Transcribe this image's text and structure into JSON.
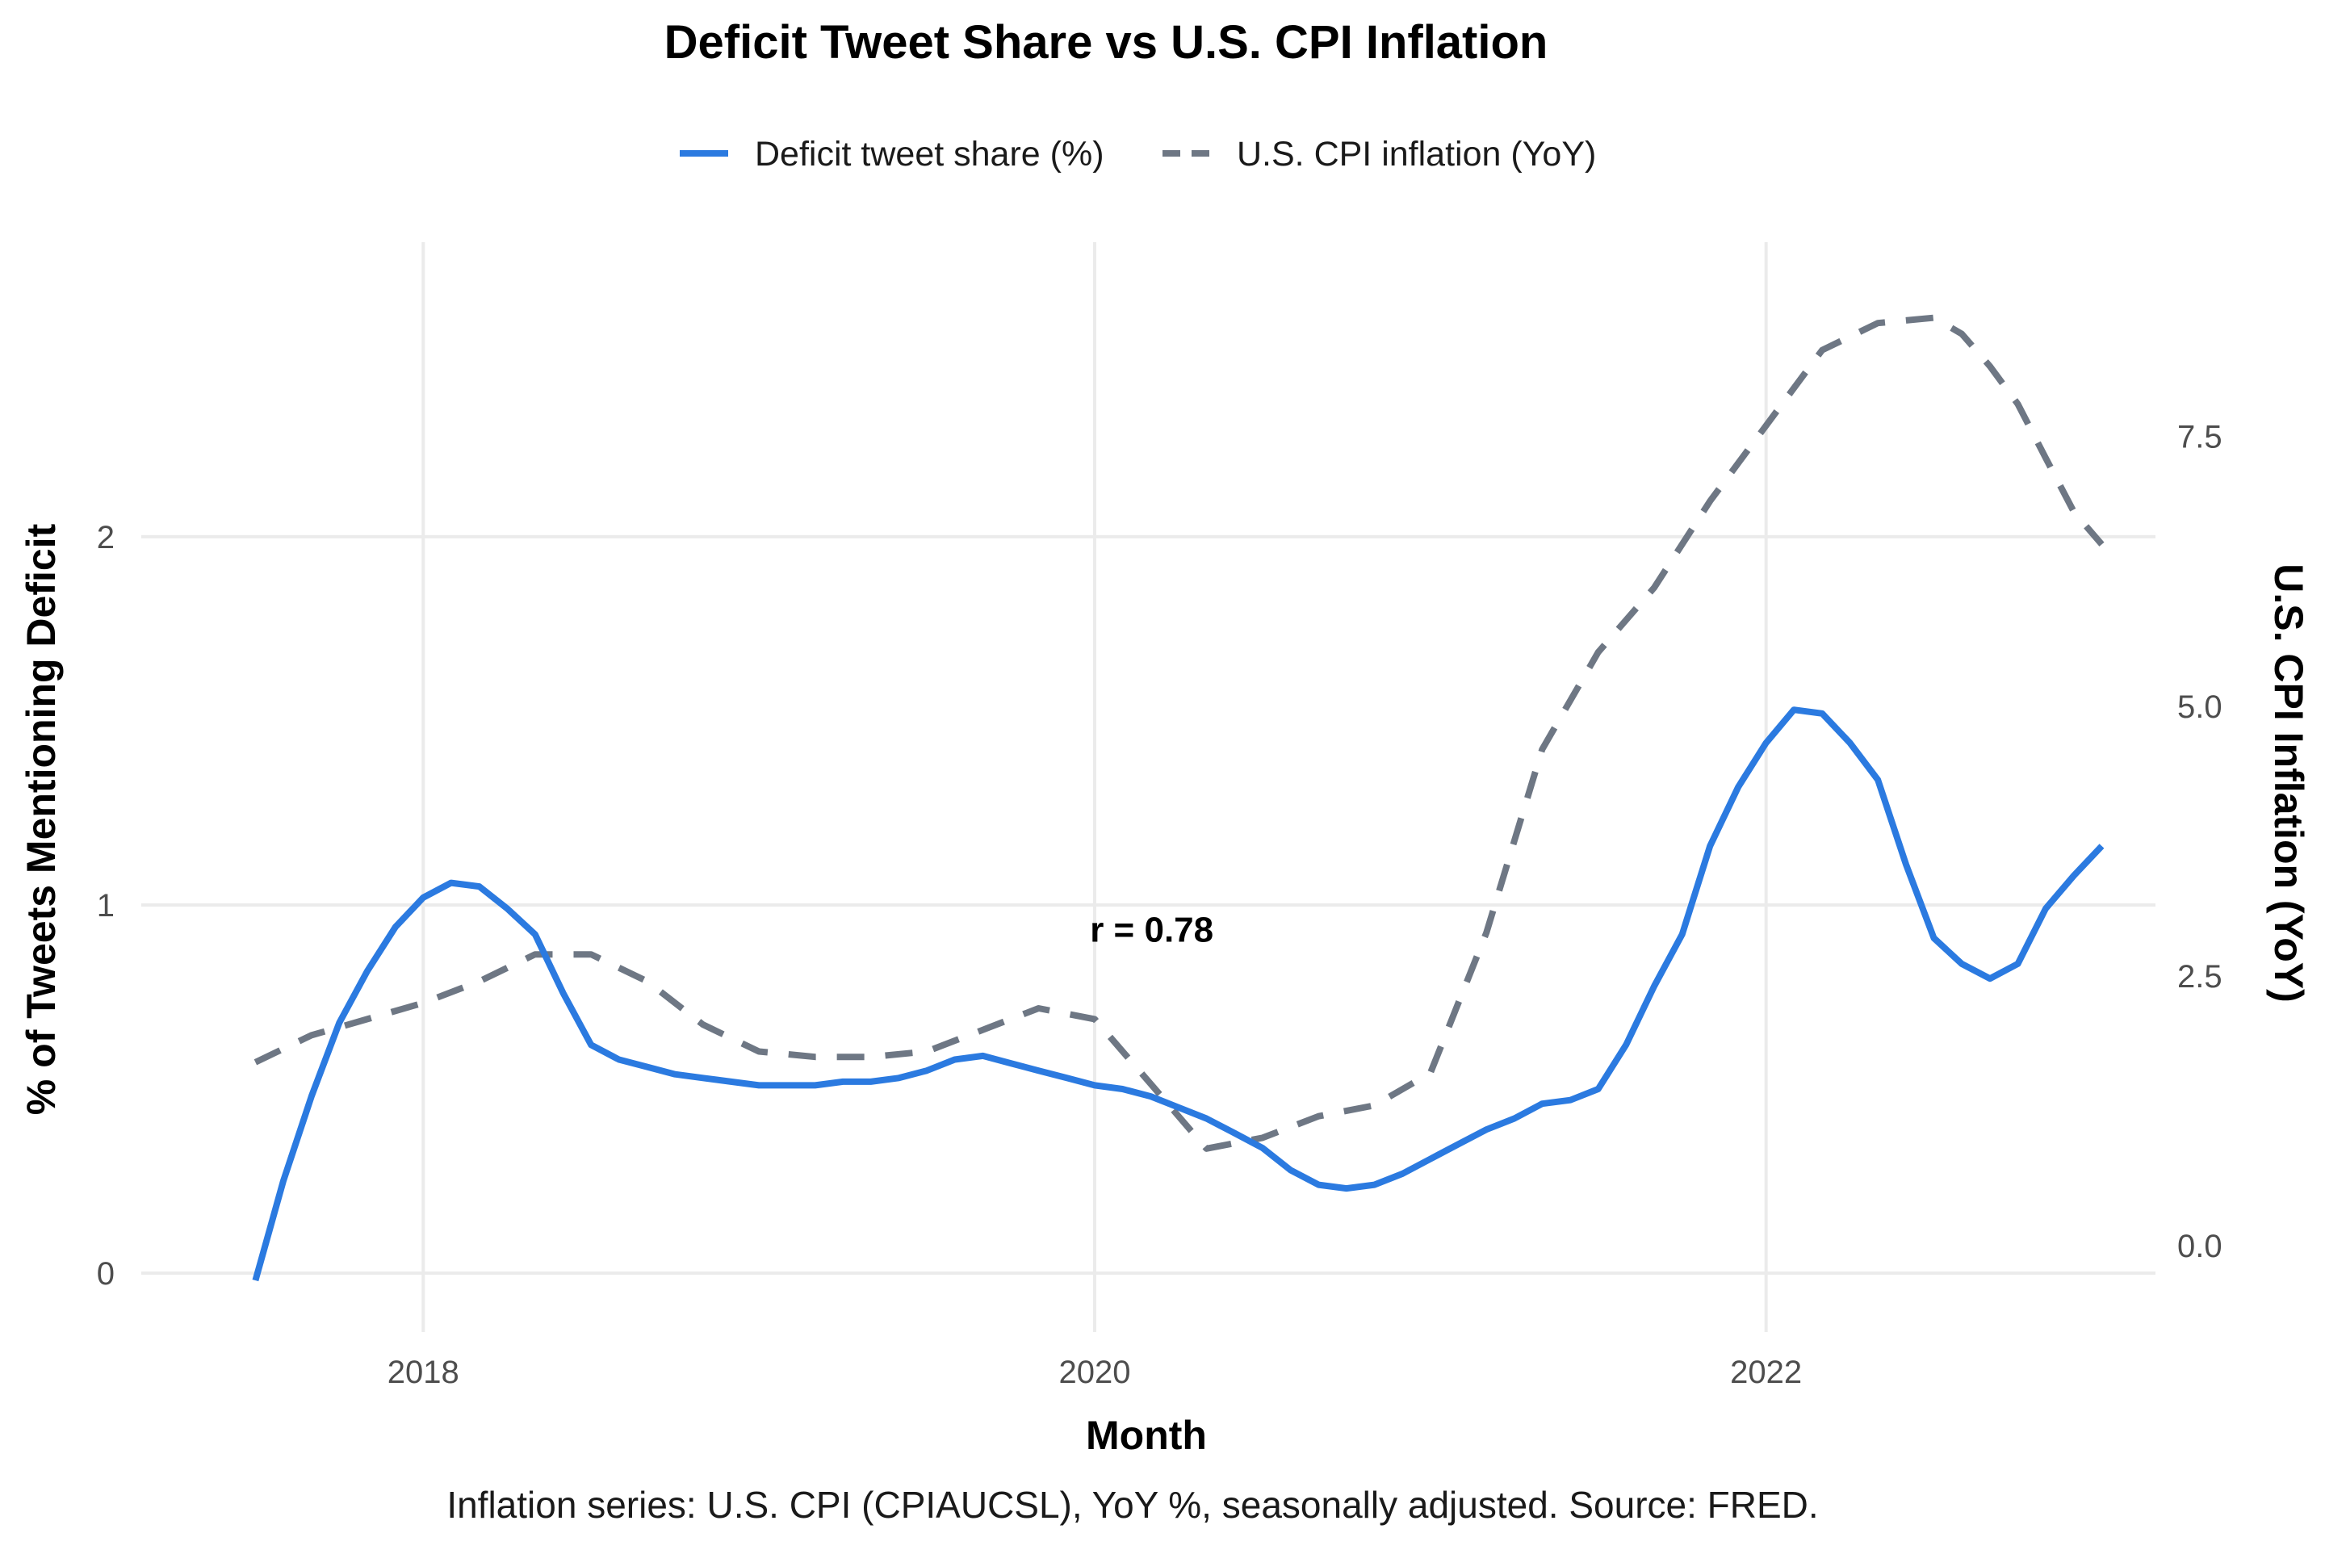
{
  "chart_data": {
    "type": "line",
    "title": "Deficit Tweet Share vs U.S. CPI Inflation",
    "xlabel": "Month",
    "ylabel": "% of Tweets Mentioning Deficit",
    "y2label": "U.S. CPI Inflation (YoY)",
    "caption": "Inflation series: U.S. CPI (CPIAUCSL), YoY %, seasonally adjusted. Source: FRED.",
    "annotation": {
      "text": "r = 0.78",
      "x": 2020.17,
      "y": 0.9
    },
    "x_ticks": [
      {
        "value": 2018,
        "label": "2018"
      },
      {
        "value": 2020,
        "label": "2020"
      },
      {
        "value": 2022,
        "label": "2022"
      }
    ],
    "y_ticks": [
      {
        "value": 0,
        "label": "0"
      },
      {
        "value": 1,
        "label": "1"
      },
      {
        "value": 2,
        "label": "2"
      }
    ],
    "y2_ticks": [
      {
        "value": 0,
        "label": "0.0"
      },
      {
        "value": 2.5,
        "label": "2.5"
      },
      {
        "value": 5,
        "label": "5.0"
      },
      {
        "value": 7.5,
        "label": "7.5"
      }
    ],
    "xlim": [
      2017.16,
      2023.16
    ],
    "ylim": [
      -0.16,
      2.8
    ],
    "y2lim": [
      -0.8,
      9.3
    ],
    "legend_position": "top",
    "series": [
      {
        "name": "Deficit tweet share (%)",
        "axis": "left",
        "color": "#2b7ae0",
        "style": "solid",
        "x": [
          2017.5,
          2017.583,
          2017.667,
          2017.75,
          2017.833,
          2017.917,
          2018.0,
          2018.083,
          2018.167,
          2018.25,
          2018.333,
          2018.417,
          2018.5,
          2018.583,
          2018.667,
          2018.75,
          2018.833,
          2018.917,
          2019.0,
          2019.083,
          2019.167,
          2019.25,
          2019.333,
          2019.417,
          2019.5,
          2019.583,
          2019.667,
          2019.75,
          2019.833,
          2019.917,
          2020.0,
          2020.083,
          2020.167,
          2020.25,
          2020.333,
          2020.417,
          2020.5,
          2020.583,
          2020.667,
          2020.75,
          2020.833,
          2020.917,
          2021.0,
          2021.083,
          2021.167,
          2021.25,
          2021.333,
          2021.417,
          2021.5,
          2021.583,
          2021.667,
          2021.75,
          2021.833,
          2021.917,
          2022.0,
          2022.083,
          2022.167,
          2022.25,
          2022.333,
          2022.417,
          2022.5,
          2022.583,
          2022.667,
          2022.75,
          2022.833,
          2022.917,
          2023.0
        ],
        "values": [
          -0.02,
          0.25,
          0.48,
          0.68,
          0.82,
          0.94,
          1.02,
          1.06,
          1.05,
          0.99,
          0.92,
          0.76,
          0.62,
          0.58,
          0.56,
          0.54,
          0.53,
          0.52,
          0.51,
          0.51,
          0.51,
          0.52,
          0.52,
          0.53,
          0.55,
          0.58,
          0.59,
          0.57,
          0.55,
          0.53,
          0.51,
          0.5,
          0.48,
          0.45,
          0.42,
          0.38,
          0.34,
          0.28,
          0.24,
          0.23,
          0.24,
          0.27,
          0.31,
          0.35,
          0.39,
          0.42,
          0.46,
          0.47,
          0.5,
          0.62,
          0.78,
          0.92,
          1.16,
          1.32,
          1.44,
          1.53,
          1.52,
          1.44,
          1.34,
          1.11,
          0.91,
          0.84,
          0.8,
          0.84,
          0.99,
          1.08,
          1.16
        ]
      },
      {
        "name": "U.S. CPI inflation (YoY)",
        "axis": "right",
        "color": "#6e7784",
        "style": "dashed",
        "x": [
          2017.5,
          2017.667,
          2017.833,
          2018.0,
          2018.167,
          2018.333,
          2018.5,
          2018.667,
          2018.833,
          2019.0,
          2019.167,
          2019.333,
          2019.5,
          2019.667,
          2019.833,
          2020.0,
          2020.167,
          2020.333,
          2020.5,
          2020.667,
          2020.833,
          2021.0,
          2021.167,
          2021.333,
          2021.5,
          2021.667,
          2021.833,
          2022.0,
          2022.167,
          2022.333,
          2022.5,
          2022.583,
          2022.667,
          2022.75,
          2022.833,
          2022.917,
          2023.0
        ],
        "values": [
          1.7,
          1.95,
          2.1,
          2.25,
          2.45,
          2.7,
          2.7,
          2.45,
          2.05,
          1.8,
          1.75,
          1.75,
          1.8,
          2.0,
          2.2,
          2.1,
          1.5,
          0.9,
          1.0,
          1.2,
          1.3,
          1.6,
          2.9,
          4.6,
          5.5,
          6.1,
          6.9,
          7.6,
          8.3,
          8.55,
          8.6,
          8.45,
          8.15,
          7.8,
          7.3,
          6.8,
          6.5
        ]
      }
    ]
  }
}
